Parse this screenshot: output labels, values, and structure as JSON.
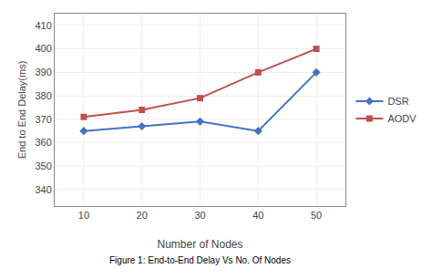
{
  "chart_data": {
    "type": "line",
    "x": [
      10,
      20,
      30,
      40,
      50
    ],
    "series": [
      {
        "name": "DSR",
        "color": "#4472C4",
        "marker": "diamond",
        "values": [
          365,
          367,
          369,
          365,
          390
        ]
      },
      {
        "name": "AODV",
        "color": "#C0504D",
        "marker": "square",
        "values": [
          371,
          374,
          379,
          390,
          400
        ]
      }
    ],
    "xlabel": "Number of Nodes",
    "ylabel": "End to End Delay(ms)",
    "caption": "Figure 1: End-to-End Delay Vs No. Of Nodes",
    "xlim": [
      5,
      55
    ],
    "xticks": [
      10,
      20,
      30,
      40,
      50
    ],
    "ylim": [
      333,
      415
    ],
    "yticks": [
      340,
      350,
      360,
      370,
      380,
      390,
      400,
      410
    ],
    "grid": true,
    "legend": "right"
  }
}
